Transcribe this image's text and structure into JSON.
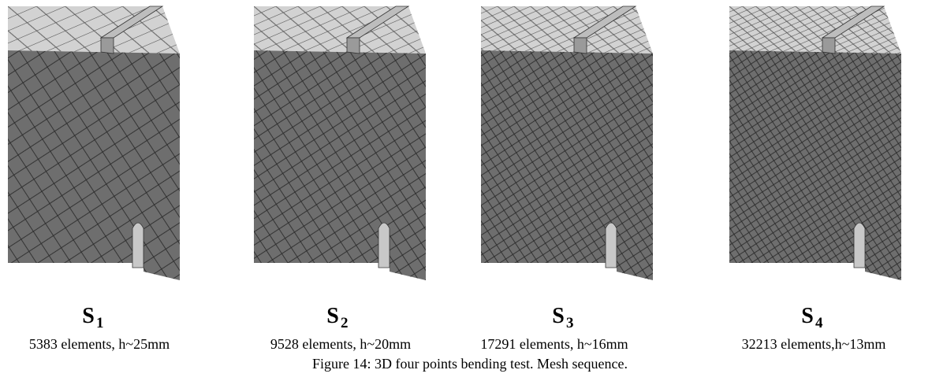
{
  "panels": [
    {
      "label": "S",
      "subscript": "1",
      "caption": "5383 elements, h~25mm"
    },
    {
      "label": "S",
      "subscript": "2",
      "caption": "9528 elements, h~20mm"
    },
    {
      "label": "S",
      "subscript": "3",
      "caption": "17291 elements, h~16mm"
    },
    {
      "label": "S",
      "subscript": "4",
      "caption": "32213 elements,h~13mm"
    }
  ],
  "caption": "Figure 14: 3D four points bending test. Mesh sequence."
}
